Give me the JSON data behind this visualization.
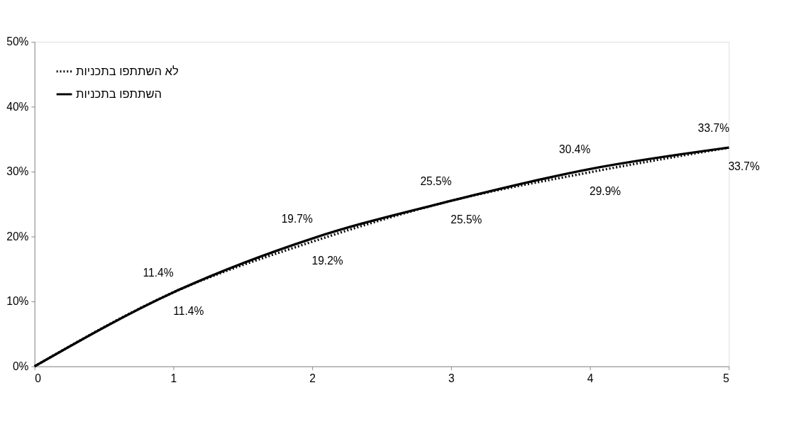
{
  "chart_data": {
    "type": "line",
    "x": [
      0,
      1,
      2,
      3,
      4,
      5
    ],
    "series": [
      {
        "name": "לא השתתפו בתכניות",
        "color": "#000000",
        "line_style": "dotted",
        "values": [
          0,
          11.4,
          19.2,
          25.5,
          29.9,
          33.7
        ],
        "value_labels": [
          null,
          "11.4%",
          "19.2%",
          "25.5%",
          "29.9%",
          "33.7%"
        ]
      },
      {
        "name": "השתתפו בתכניות",
        "color": "#000000",
        "line_style": "solid",
        "values": [
          0,
          11.4,
          19.7,
          25.5,
          30.4,
          33.7
        ],
        "value_labels": [
          null,
          "11.4%",
          "19.7%",
          "25.5%",
          "30.4%",
          "33.7%"
        ]
      }
    ],
    "xlim": [
      0,
      5
    ],
    "xticks": [
      0,
      1,
      2,
      3,
      4,
      5
    ],
    "ylim": [
      0,
      50
    ],
    "yticks": [
      {
        "value": 0,
        "label": "0%"
      },
      {
        "value": 10,
        "label": "10%"
      },
      {
        "value": 20,
        "label": "20%"
      },
      {
        "value": 30,
        "label": "30%"
      },
      {
        "value": 40,
        "label": "40%"
      },
      {
        "value": 50,
        "label": "50%"
      }
    ],
    "grid": false,
    "legend": "top left",
    "marker": "none"
  }
}
